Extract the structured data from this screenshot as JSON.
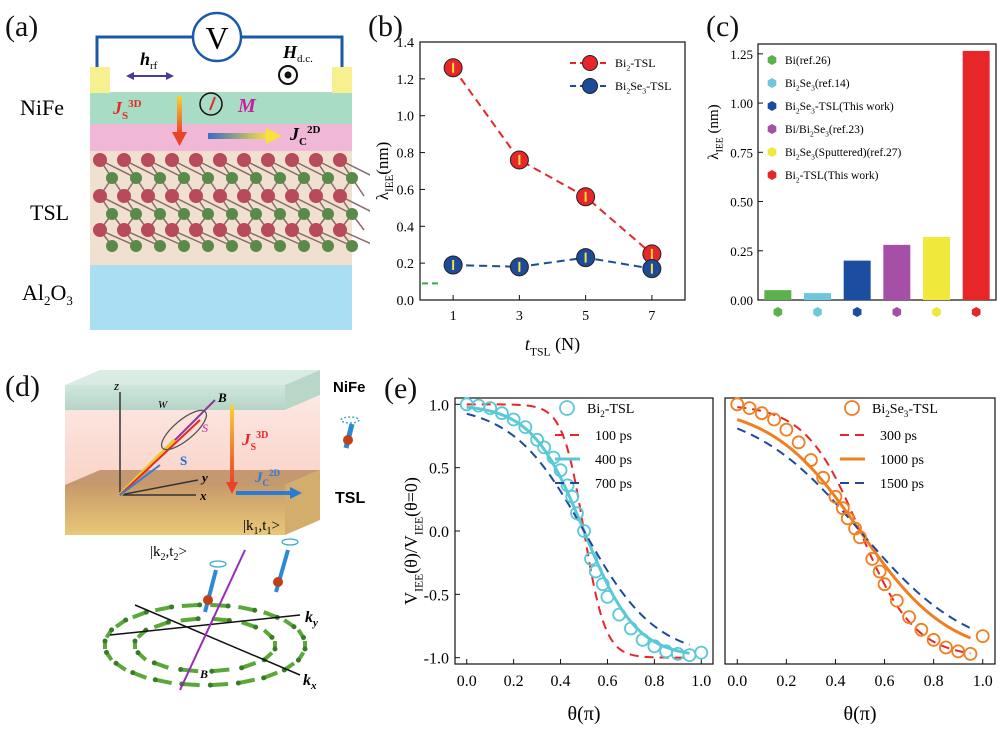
{
  "figure": {
    "panel_labels": [
      "(a)",
      "(b)",
      "(c)",
      "(d)",
      "(e)"
    ]
  },
  "panel_a": {
    "voltmeter": "V",
    "h_rf": "h",
    "h_rf_sub": "rf",
    "h_dc": "H",
    "h_dc_sub": "d.c.",
    "j_s": "J",
    "j_s_sub": "S",
    "j_s_sup": "3D",
    "m_label": "M",
    "j_c": "J",
    "j_c_sub": "C",
    "j_c_sup": "2D",
    "layer_nife": "NiFe",
    "layer_tsl": "TSL",
    "layer_al": "Al",
    "layer_al_sub": "2",
    "layer_al_o": "O",
    "layer_al_sub2": "3",
    "colors": {
      "nife": "#a8dcc4",
      "interface": "#f0b8d6",
      "tsl": "#efe0cf",
      "al2o3": "#a9def3",
      "wire": "#1a5aa8",
      "contact": "#f7f090"
    }
  },
  "panel_d": {
    "nife": "NiFe",
    "tsl": "TSL",
    "z": "z",
    "y": "y",
    "x": "x",
    "B": "B",
    "W": "W",
    "S": "S",
    "js": "J",
    "js_sup": "3D",
    "js_sub": "S",
    "jc": "J",
    "jc_sup": "2D",
    "jc_sub": "C",
    "ket1": "|k",
    "ket1_mid": ",t",
    "ket1_end": ">",
    "ket2": "|k",
    "ket2_mid": ",t",
    "ket2_end": ">",
    "ky": "k",
    "ky_sub": "y",
    "kx": "k",
    "kx_sub": "x",
    "B_bottom": "B"
  },
  "chart_data": [
    {
      "panel": "(b)",
      "type": "line",
      "x": [
        1,
        3,
        5,
        7
      ],
      "xlabel": "t",
      "xlabel_sub": "TSL",
      "xlabel_unit": " (N)",
      "ylabel": "λ",
      "ylabel_sub": "IEE",
      "ylabel_unit": "(nm)",
      "xlim": [
        0,
        8
      ],
      "ylim": [
        0,
        1.4
      ],
      "xticks": [
        1,
        3,
        5,
        7
      ],
      "yticks": [
        0.0,
        0.2,
        0.4,
        0.6,
        0.8,
        1.0,
        1.2,
        1.4
      ],
      "series": [
        {
          "name": "Bi2-TSL",
          "name_base": "Bi",
          "name_sub": "2",
          "name_rest": "-TSL",
          "values": [
            1.26,
            0.76,
            0.56,
            0.25
          ],
          "color": "#e8262a",
          "dash": "8,5"
        },
        {
          "name": "Bi2Se3-TSL",
          "name_base": "Bi",
          "name_sub": "2",
          "name_rest2": "Se",
          "name_sub2": "3",
          "name_rest": "-TSL",
          "values": [
            0.19,
            0.18,
            0.23,
            0.17
          ],
          "color": "#1d4b99",
          "dash": "8,5"
        }
      ],
      "legend_position": "top-right"
    },
    {
      "panel": "(c)",
      "type": "bar",
      "categories": [
        "Bi(ref.26)",
        "Bi2Se3(ref.14)",
        "Bi2Se3-TSL(This work)",
        "Bi/Bi2Se3(ref.23)",
        "Bi2Se3(Sputtered)(ref.27)",
        "Bi2-TSL(This work)"
      ],
      "legend_labels": [
        {
          "base": "Bi(ref.26)"
        },
        {
          "base": "Bi",
          "sub": "2",
          "base2": "Se",
          "sub2": "3",
          "rest": "(ref.14)"
        },
        {
          "base": "Bi",
          "sub": "2",
          "base2": "Se",
          "sub2": "3",
          "rest": "-TSL(This work)"
        },
        {
          "base": "Bi/Bi",
          "sub": "2",
          "base2": "Se",
          "sub2": "3",
          "rest": "(ref.23)"
        },
        {
          "base": "Bi",
          "sub": "2",
          "base2": "Se",
          "sub2": "3",
          "rest": "(Sputtered)(ref.27)"
        },
        {
          "base": "Bi",
          "sub": "2",
          "rest": "-TSL(This work)"
        }
      ],
      "values": [
        0.05,
        0.035,
        0.2,
        0.28,
        0.32,
        1.265
      ],
      "colors": [
        "#5bb14a",
        "#6ec8dc",
        "#1b4ea0",
        "#a64fa6",
        "#f0e83a",
        "#e7262a"
      ],
      "ylabel": "λ",
      "ylabel_sub": "IEE",
      "ylabel_unit": " (nm)",
      "ylim": [
        0,
        1.3
      ],
      "yticks": [
        "0.00",
        "0.25",
        "0.50",
        "0.75",
        "1.00",
        "1.25"
      ],
      "legend_position": "top-left"
    },
    {
      "panel": "(e) left",
      "type": "line",
      "xlabel": "θ(π)",
      "ylabel": "V",
      "ylabel_sub": "IEE",
      "ylabel_mid": "(θ)/V",
      "ylabel_sub2": "IEE",
      "ylabel_end": "(θ=0)",
      "xlim": [
        -0.05,
        1.05
      ],
      "ylim": [
        -1.05,
        1.05
      ],
      "xticks": [
        "0.0",
        "0.2",
        "0.4",
        "0.6",
        "0.8",
        "1.0"
      ],
      "yticks": [
        "1.0",
        "0.5",
        "0.0",
        "-0.5",
        "-1.0"
      ],
      "scatter": {
        "name": "Bi2-TSL",
        "name_base": "Bi",
        "name_sub": "2",
        "name_rest": "-TSL",
        "color": "#5bc8d8",
        "x": [
          0.0,
          0.05,
          0.1,
          0.15,
          0.2,
          0.25,
          0.3,
          0.33,
          0.37,
          0.4,
          0.43,
          0.45,
          0.47,
          0.5,
          0.53,
          0.55,
          0.58,
          0.6,
          0.65,
          0.7,
          0.75,
          0.8,
          0.85,
          0.9,
          0.95,
          1.0
        ],
        "y": [
          1.0,
          0.99,
          0.97,
          0.93,
          0.88,
          0.82,
          0.72,
          0.66,
          0.58,
          0.48,
          0.36,
          0.27,
          0.14,
          0.0,
          -0.22,
          -0.32,
          -0.42,
          -0.52,
          -0.66,
          -0.77,
          -0.86,
          -0.91,
          -0.95,
          -0.97,
          -0.98,
          -0.96
        ]
      },
      "fits": [
        {
          "name": "100 ps",
          "color": "#e8262a",
          "dash": "9,6",
          "width": 2,
          "sharp": 22
        },
        {
          "name": "400 ps",
          "color": "#5bc8d8",
          "dash": "",
          "width": 3,
          "sharp": 9
        },
        {
          "name": "700 ps",
          "color": "#1d4b99",
          "dash": "9,6",
          "width": 2,
          "sharp": 6.5
        }
      ]
    },
    {
      "panel": "(e) right",
      "type": "line",
      "xlabel": "θ(π)",
      "xlim": [
        -0.05,
        1.05
      ],
      "ylim": [
        -1.05,
        1.05
      ],
      "xticks": [
        "0.0",
        "0.2",
        "0.4",
        "0.6",
        "0.8",
        "1.0"
      ],
      "scatter": {
        "name": "Bi2Se3-TSL",
        "name_base": "Bi",
        "name_sub": "2",
        "name_rest2": "Se",
        "name_sub2": "3",
        "name_rest": "-TSL",
        "color": "#f07f22",
        "x": [
          0.0,
          0.05,
          0.1,
          0.15,
          0.2,
          0.25,
          0.3,
          0.35,
          0.4,
          0.43,
          0.45,
          0.48,
          0.5,
          0.55,
          0.58,
          0.6,
          0.65,
          0.7,
          0.75,
          0.8,
          0.85,
          0.9,
          0.95,
          1.0
        ],
        "y": [
          1.0,
          0.97,
          0.93,
          0.88,
          0.8,
          0.7,
          0.56,
          0.42,
          0.27,
          0.18,
          0.1,
          0.02,
          -0.05,
          -0.22,
          -0.32,
          -0.42,
          -0.55,
          -0.68,
          -0.78,
          -0.86,
          -0.92,
          -0.95,
          -0.97,
          -0.83
        ]
      },
      "fits": [
        {
          "name": "300 ps",
          "color": "#e8262a",
          "dash": "9,6",
          "width": 2,
          "sharp": 9
        },
        {
          "name": "1000 ps",
          "color": "#f07f22",
          "dash": "",
          "width": 3,
          "sharp": 5.5
        },
        {
          "name": "1500 ps",
          "color": "#1d4b99",
          "dash": "9,6",
          "width": 2,
          "sharp": 4.5
        }
      ]
    }
  ]
}
